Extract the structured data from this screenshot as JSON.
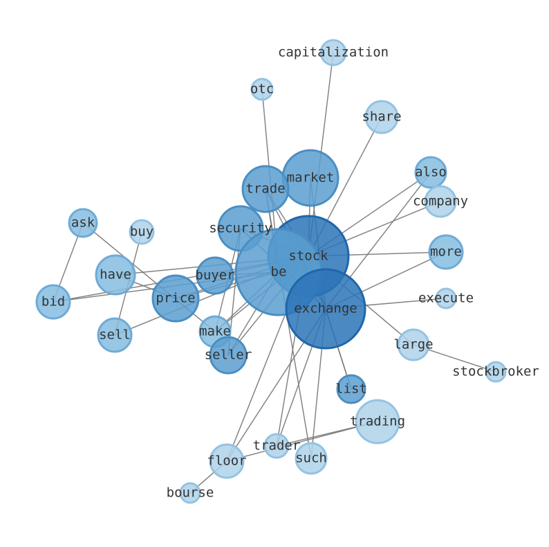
{
  "nodes": [
    {
      "label": "capitalization"
    },
    {
      "label": "otc"
    },
    {
      "label": "share"
    },
    {
      "label": "market"
    },
    {
      "label": "trade"
    },
    {
      "label": "also"
    },
    {
      "label": "company"
    },
    {
      "label": "ask"
    },
    {
      "label": "buy"
    },
    {
      "label": "security"
    },
    {
      "label": "stock"
    },
    {
      "label": "more"
    },
    {
      "label": "have"
    },
    {
      "label": "buyer"
    },
    {
      "label": "be"
    },
    {
      "label": "price"
    },
    {
      "label": "bid"
    },
    {
      "label": "exchange"
    },
    {
      "label": "execute"
    },
    {
      "label": "make"
    },
    {
      "label": "sell"
    },
    {
      "label": "seller"
    },
    {
      "label": "large"
    },
    {
      "label": "stockbroker"
    },
    {
      "label": "list"
    },
    {
      "label": "trading"
    },
    {
      "label": "trader"
    },
    {
      "label": "such"
    },
    {
      "label": "floor"
    },
    {
      "label": "bourse"
    }
  ]
}
